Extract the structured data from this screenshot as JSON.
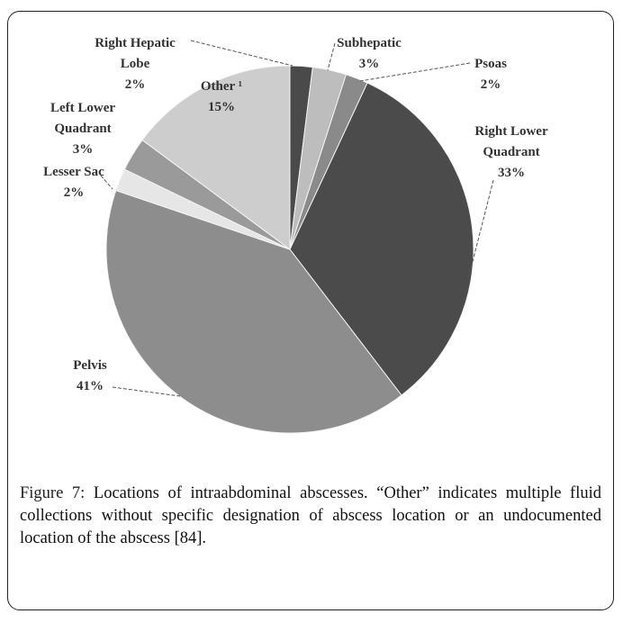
{
  "chart_data": {
    "type": "pie",
    "title": "",
    "slices": [
      {
        "label": [
          "Right Hepatic",
          "Lobe",
          "2%"
        ],
        "name": "Right Hepatic Lobe",
        "value": 2,
        "color": "#4a4a4a"
      },
      {
        "label": [
          "Subhepatic",
          "3%"
        ],
        "name": "Subhepatic",
        "value": 3,
        "color": "#bdbdbd"
      },
      {
        "label": [
          "Psoas",
          "2%"
        ],
        "name": "Psoas",
        "value": 2,
        "color": "#8a8a8a"
      },
      {
        "label": [
          "Right Lower",
          "Quadrant",
          "33%"
        ],
        "name": "Right Lower Quadrant",
        "value": 33,
        "color": "#4b4b4b"
      },
      {
        "label": [
          "Pelvis",
          "41%"
        ],
        "name": "Pelvis",
        "value": 41,
        "color": "#8d8d8d"
      },
      {
        "label": [
          "Lesser Sac",
          "2%"
        ],
        "name": "Lesser Sac",
        "value": 2,
        "color": "#e6e6e6"
      },
      {
        "label": [
          "Left Lower",
          "Quadrant",
          "3%"
        ],
        "name": "Left Lower Quadrant",
        "value": 3,
        "color": "#9a9a9a"
      },
      {
        "label": [
          "Other ¹",
          "15%"
        ],
        "name": "Other",
        "value": 15,
        "color": "#cdcdcd"
      }
    ]
  },
  "caption": {
    "label": "Figure 7:",
    "text": " Locations of intraabdominal abscesses. “Other” indicates multiple fluid collections without specific designation of abscess location or an undocumented location of the abscess [84]."
  }
}
